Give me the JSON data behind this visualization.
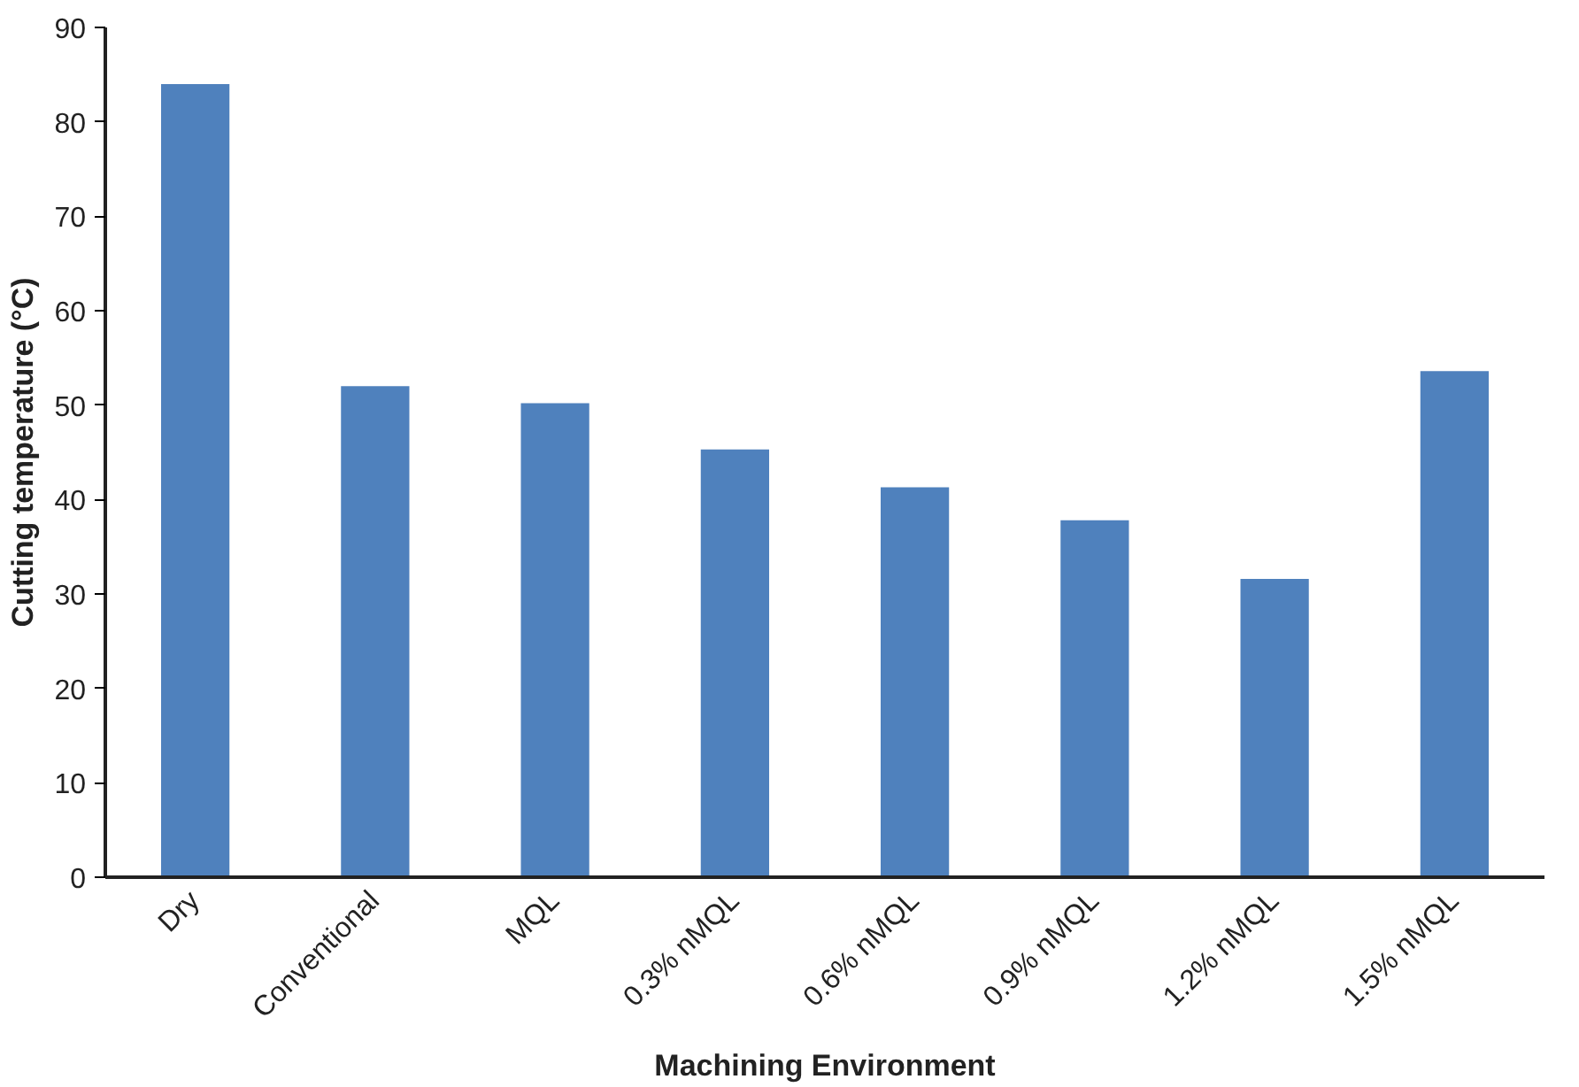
{
  "chart_data": {
    "type": "bar",
    "xlabel": "Machining Environment",
    "ylabel": "Cutting temperature (°C)",
    "categories": [
      "Dry",
      "Conventional",
      "MQL",
      "0.3% nMQL",
      "0.6% nMQL",
      "0.9% nMQL",
      "1.2% nMQL",
      "1.5% nMQL"
    ],
    "values": [
      84,
      52,
      50.2,
      45.3,
      41.3,
      37.8,
      31.6,
      53.6
    ],
    "color": "#4f81bd",
    "ylim": [
      0,
      90
    ],
    "yticks": [
      0,
      10,
      20,
      30,
      40,
      50,
      60,
      70,
      80,
      90
    ],
    "grid": false
  }
}
